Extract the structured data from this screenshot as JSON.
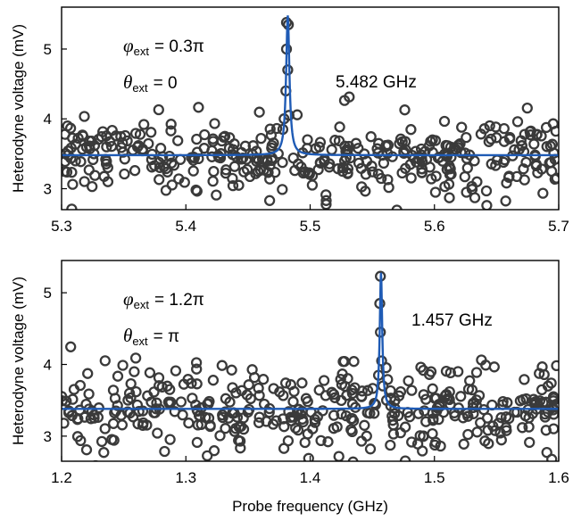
{
  "chart_data": [
    {
      "type": "scatter",
      "xlim": [
        5.3,
        5.7
      ],
      "ylim": [
        2.7,
        5.6
      ],
      "x_ticks": [
        5.3,
        5.4,
        5.5,
        5.6,
        5.7
      ],
      "x_tick_labels": [
        "5.3",
        "5.4",
        "5.5",
        "5.6",
        "5.7"
      ],
      "y_ticks": [
        3,
        4,
        5
      ],
      "y_tick_labels": [
        "3",
        "4",
        "5"
      ],
      "ylabel": "Heterodyne voltage (mV)",
      "xlabel": "",
      "phi_label": "φ",
      "phi_sub": "ext",
      "phi_value": "= 0.3π",
      "theta_label": "θ",
      "theta_sub": "ext",
      "theta_value": "= 0",
      "freq_label": "5.482 GHz",
      "series": [
        {
          "kind": "scatter",
          "baseline": 3.48,
          "noise": 0.28,
          "n_points": 400
        },
        {
          "kind": "lorentzian_fit",
          "center": 5.482,
          "hwhm": 0.0016,
          "offset": 3.48,
          "amplitude": 2.0
        }
      ],
      "peak_points": [
        [
          5.481,
          5.38
        ],
        [
          5.4825,
          5.35
        ],
        [
          5.481,
          5.0
        ],
        [
          5.482,
          4.7
        ],
        [
          5.4805,
          4.4
        ],
        [
          5.483,
          4.05
        ],
        [
          5.479,
          4.0
        ],
        [
          5.478,
          3.85
        ]
      ]
    },
    {
      "type": "scatter",
      "xlim": [
        1.2,
        1.6
      ],
      "ylim": [
        2.65,
        5.45
      ],
      "x_ticks": [
        1.2,
        1.3,
        1.4,
        1.5,
        1.6
      ],
      "x_tick_labels": [
        "1.2",
        "1.3",
        "1.4",
        "1.5",
        "1.6"
      ],
      "y_ticks": [
        3,
        4,
        5
      ],
      "y_tick_labels": [
        "3",
        "4",
        "5"
      ],
      "ylabel": "Heterodyne voltage (mV)",
      "xlabel": "Probe frequency (GHz)",
      "phi_label": "φ",
      "phi_sub": "ext",
      "phi_value": "= 1.2π",
      "theta_label": "θ",
      "theta_sub": "ext",
      "theta_value": "= π",
      "freq_label": "1.457 GHz",
      "series": [
        {
          "kind": "scatter",
          "baseline": 3.38,
          "noise": 0.28,
          "n_points": 400
        },
        {
          "kind": "lorentzian_fit",
          "center": 1.457,
          "hwhm": 0.0012,
          "offset": 3.38,
          "amplitude": 1.9
        }
      ],
      "peak_points": [
        [
          1.4565,
          5.23
        ],
        [
          1.456,
          4.85
        ],
        [
          1.4565,
          4.45
        ],
        [
          1.4575,
          4.05
        ],
        [
          1.455,
          3.85
        ],
        [
          1.4585,
          3.7
        ]
      ]
    }
  ]
}
